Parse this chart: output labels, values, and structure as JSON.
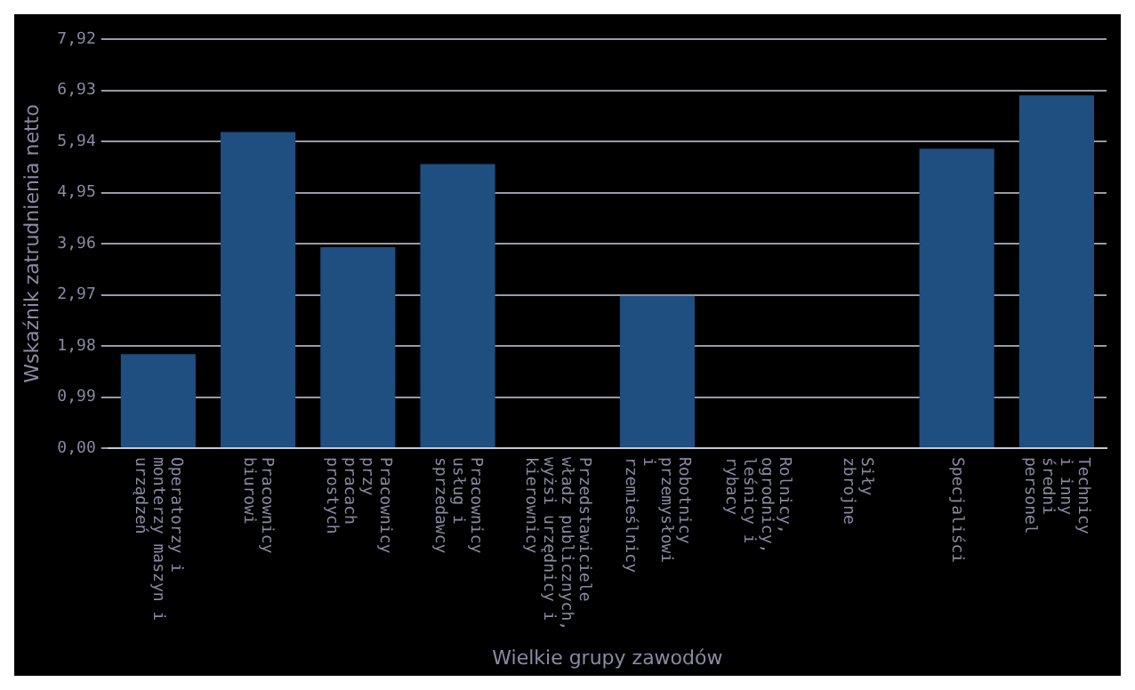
{
  "chart_data": {
    "type": "bar",
    "xlabel": "Wielkie grupy zawodów",
    "ylabel": "Wskaźnik zatrudnienia netto",
    "categories": [
      "Operatorzy i\nmonterzy maszyn i\nurządzeń",
      "Pracownicy\nbiurowi",
      "Pracownicy\nprzy\npracach\nprostych",
      "Pracownicy\nusług i\nsprzedawcy",
      "Przedstawiciele\nwładz publicznych,\nwyżsi urzędnicy i\nkierownicy",
      "Robotnicy\nprzemysłowi\ni\nrzemieślnicy",
      "Rolnicy,\nogrodnicy,\nleśnicy i\nrybacy",
      "Siły\nzbrojne",
      "Specjaliści",
      "Technicy\ni inny\nśredni\npersonel"
    ],
    "values": [
      1.82,
      6.12,
      3.89,
      5.5,
      null,
      2.95,
      null,
      null,
      5.8,
      6.83
    ],
    "color": "#1f4e80",
    "ylim": [
      0,
      7.92
    ],
    "yticks": [
      {
        "value": 0,
        "label": "0,00"
      },
      {
        "value": 0.99,
        "label": "0,99"
      },
      {
        "value": 1.98,
        "label": "1,98"
      },
      {
        "value": 2.97,
        "label": "2,97"
      },
      {
        "value": 3.96,
        "label": "3,96"
      },
      {
        "value": 4.95,
        "label": "4,95"
      },
      {
        "value": 5.94,
        "label": "5,94"
      },
      {
        "value": 6.93,
        "label": "6,93"
      },
      {
        "value": 7.92,
        "label": "7,92"
      }
    ],
    "grid": "y"
  }
}
